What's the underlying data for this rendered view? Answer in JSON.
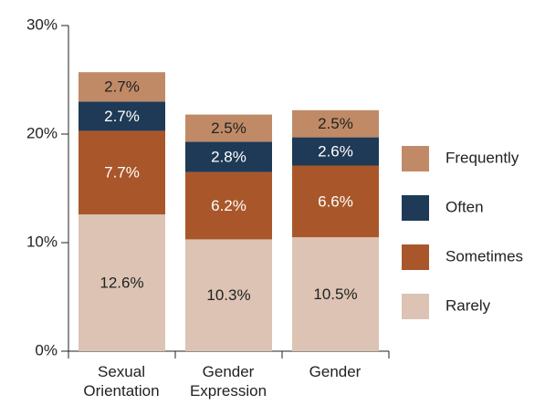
{
  "chart_data": {
    "type": "stacked_bar",
    "categories": [
      "Sexual Orientation",
      "Gender Expression",
      "Gender"
    ],
    "series": [
      {
        "name": "Rarely",
        "color": "#dcc3b3",
        "values": [
          12.6,
          10.3,
          10.5
        ],
        "value_labels": [
          "12.6%",
          "10.3%",
          "10.5%"
        ]
      },
      {
        "name": "Sometimes",
        "color": "#a9572a",
        "values": [
          7.7,
          6.2,
          6.6
        ],
        "value_labels": [
          "7.7%",
          "6.2%",
          "6.6%"
        ]
      },
      {
        "name": "Often",
        "color": "#1f3a56",
        "values": [
          2.7,
          2.8,
          2.6
        ],
        "value_labels": [
          "2.7%",
          "2.8%",
          "2.6%"
        ]
      },
      {
        "name": "Frequently",
        "color": "#c08a67",
        "values": [
          2.7,
          2.5,
          2.5
        ],
        "value_labels": [
          "2.7%",
          "2.5%",
          "2.5%"
        ]
      }
    ],
    "ylim": [
      0,
      30
    ],
    "yticks": [
      {
        "value": 0,
        "label": "0%"
      },
      {
        "value": 10,
        "label": "10%"
      },
      {
        "value": 20,
        "label": "20%"
      },
      {
        "value": 30,
        "label": "30%"
      }
    ],
    "legend": "right"
  }
}
